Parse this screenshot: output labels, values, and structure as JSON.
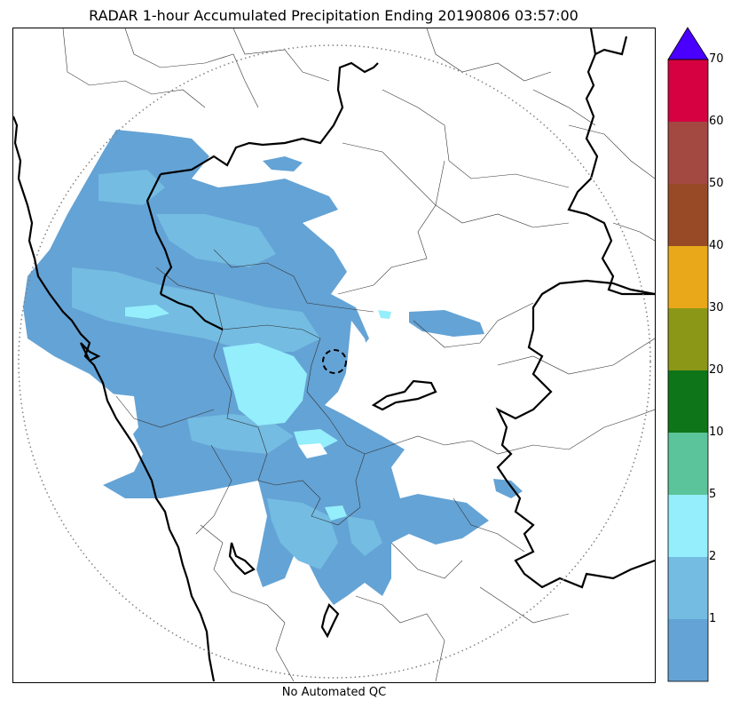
{
  "title": "RADAR 1-hour Accumulated Precipitation Ending 20190806 03:57:00",
  "footer_note": "No Automated QC",
  "colorbar": {
    "ticks": [
      "1",
      "2",
      "5",
      "10",
      "20",
      "30",
      "40",
      "50",
      "60",
      "70"
    ],
    "bins": [
      {
        "range": "0-1",
        "color": "#64a3d5"
      },
      {
        "range": "1-2",
        "color": "#74bce2"
      },
      {
        "range": "2-5",
        "color": "#95eefb"
      },
      {
        "range": "5-10",
        "color": "#5cc49a"
      },
      {
        "range": "10-20",
        "color": "#0f7519"
      },
      {
        "range": "20-30",
        "color": "#8b9716"
      },
      {
        "range": "30-40",
        "color": "#e8a81a"
      },
      {
        "range": "40-50",
        "color": "#984a27"
      },
      {
        "range": "50-60",
        "color": "#a44842"
      },
      {
        "range": "60-70",
        "color": "#d50140"
      }
    ],
    "extend_color": "#4a00ff"
  },
  "map": {
    "range_ring": "dotted",
    "boundaries": [
      "state-borders-bold",
      "district-borders-thin",
      "coastline"
    ]
  }
}
